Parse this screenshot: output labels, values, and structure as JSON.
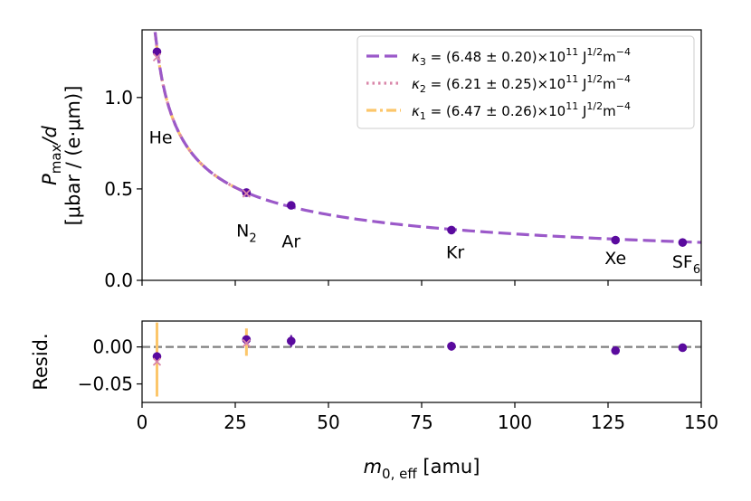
{
  "chart_data": [
    {
      "type": "scatter",
      "ylabel_line1": "P_max/d",
      "ylabel_line2": "[μbar / (e·μm)]",
      "ylabel_parts": {
        "p": "P",
        "sub": "max",
        "rest": "/d"
      },
      "ylabel_units": "[μbar / (e·μm)]",
      "xlim": [
        0,
        150
      ],
      "ylim": [
        0,
        1.37
      ],
      "yticks": [
        "0.0",
        "0.5",
        "1.0"
      ],
      "ytick_values": [
        0.0,
        0.5,
        1.0
      ],
      "points": [
        {
          "gas": "He",
          "x": 4.0,
          "y": 1.25,
          "err": 0.02
        },
        {
          "gas": "N2",
          "x": 28.0,
          "y": 0.48,
          "err": 0.01
        },
        {
          "gas": "Ar",
          "x": 40.0,
          "y": 0.41,
          "err": 0.005
        },
        {
          "gas": "Kr",
          "x": 83.0,
          "y": 0.275,
          "err": 0.004
        },
        {
          "gas": "Xe",
          "x": 127.0,
          "y": 0.22,
          "err": 0.004
        },
        {
          "gas": "SF6",
          "x": 145.0,
          "y": 0.207,
          "err": 0.004
        }
      ],
      "gas_labels": [
        {
          "text": "He",
          "x": 5,
          "y": 0.75
        },
        {
          "text": "N",
          "sub": "2",
          "x": 28,
          "y": 0.24
        },
        {
          "text": "Ar",
          "x": 40,
          "y": 0.18
        },
        {
          "text": "Kr",
          "x": 84,
          "y": 0.12
        },
        {
          "text": "Xe",
          "x": 127,
          "y": 0.09
        },
        {
          "text": "SF",
          "sub": "6",
          "x": 146,
          "y": 0.07
        }
      ],
      "x_markers": [
        {
          "series": "κ2",
          "x": 4.0,
          "y": 1.22
        },
        {
          "series": "κ2",
          "x": 28.0,
          "y": 0.475
        }
      ],
      "series": [
        {
          "name": "κ3",
          "value": "(6.48 ± 0.20)×10",
          "sup": "11",
          "units": "J",
          "units_sup": "1/2",
          "units2": "m",
          "units2_sup": "−4",
          "color": "#9b59c9",
          "style": "dashed",
          "x_range": [
            3.5,
            150
          ]
        },
        {
          "name": "κ2",
          "value": "(6.21 ± 0.25)×10",
          "sup": "11",
          "units": "J",
          "units_sup": "1/2",
          "units2": "m",
          "units2_sup": "−4",
          "color": "#d986a9",
          "style": "dotted",
          "x_range": [
            3.5,
            28
          ]
        },
        {
          "name": "κ1",
          "value": "(6.47 ± 0.26)×10",
          "sup": "11",
          "units": "J",
          "units_sup": "1/2",
          "units2": "m",
          "units2_sup": "−4",
          "color": "#fcc66a",
          "style": "dashdot",
          "x_range": [
            3.5,
            28
          ]
        }
      ],
      "legend_position": "upper-right",
      "point_color": "#5a0a9e"
    },
    {
      "type": "scatter",
      "ylabel": "Resid.",
      "xlabel_base": "m",
      "xlabel_sub": "0, eff",
      "xlabel_units": "[amu]",
      "xlim": [
        0,
        150
      ],
      "ylim": [
        -0.075,
        0.035
      ],
      "xticks": [
        "0",
        "25",
        "50",
        "75",
        "100",
        "125",
        "150"
      ],
      "xtick_values": [
        0,
        25,
        50,
        75,
        100,
        125,
        150
      ],
      "yticks": [
        "−0.05",
        "0.00"
      ],
      "ytick_values": [
        -0.05,
        0.0
      ],
      "zero_line_color": "#808080",
      "points": [
        {
          "x": 4.0,
          "y": -0.013,
          "err": 0.006
        },
        {
          "x": 28.0,
          "y": 0.01,
          "err": 0.004
        },
        {
          "x": 40.0,
          "y": 0.008,
          "err": 0.008
        },
        {
          "x": 83.0,
          "y": 0.001,
          "err": 0.006
        },
        {
          "x": 127.0,
          "y": -0.005,
          "err": 0.004
        },
        {
          "x": 145.0,
          "y": -0.001,
          "err": 0.003
        }
      ],
      "x_markers": [
        {
          "x": 4.0,
          "y": -0.02
        },
        {
          "x": 28.0,
          "y": 0.005
        }
      ],
      "error_bands": [
        {
          "x": 4.0,
          "y_low": -0.067,
          "y_high": 0.033,
          "color": "#fcc66a"
        },
        {
          "x": 28.0,
          "y_low": -0.012,
          "y_high": 0.025,
          "color": "#fcc66a"
        }
      ]
    }
  ]
}
